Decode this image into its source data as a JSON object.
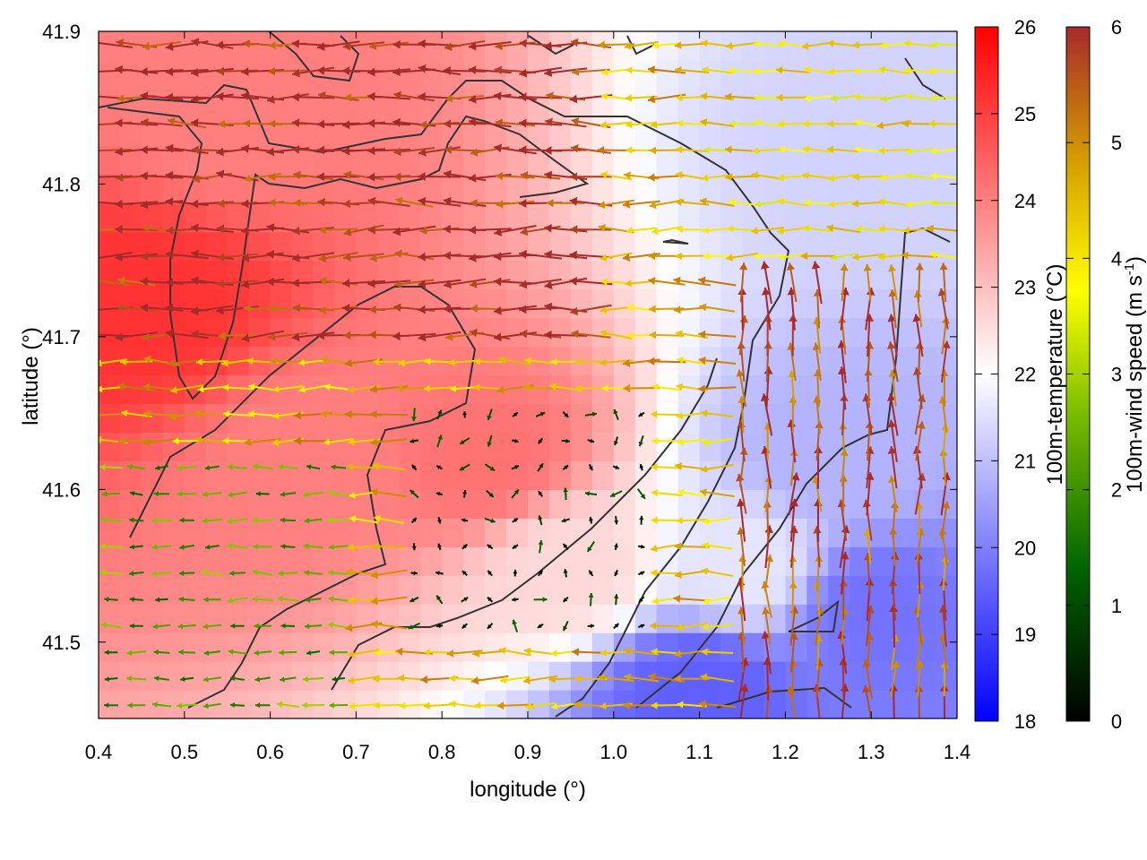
{
  "chart_data": {
    "type": "heatmap",
    "xlabel": "longitude (°)",
    "ylabel": "latitude (°)",
    "xlim": [
      0.4,
      1.4
    ],
    "ylim": [
      41.45,
      41.9
    ],
    "x_ticks": [
      "0.4",
      "0.5",
      "0.6",
      "0.7",
      "0.8",
      "0.9",
      "1.0",
      "1.1",
      "1.2",
      "1.3",
      "1.4"
    ],
    "y_ticks": [
      "41.5",
      "41.6",
      "41.7",
      "41.8",
      "41.9"
    ],
    "grid": false,
    "temperature_field": {
      "label": "100m-temperature (°C)",
      "range": [
        18,
        26
      ],
      "ticks": [
        "18",
        "19",
        "20",
        "21",
        "22",
        "23",
        "24",
        "25",
        "26"
      ],
      "colors": [
        "#0000ff",
        "#ffffff",
        "#ff0000"
      ],
      "sample_values_degC": [
        {
          "x": 0.45,
          "y": 41.72,
          "value": 25.2
        },
        {
          "x": 0.55,
          "y": 41.85,
          "value": 24.0
        },
        {
          "x": 0.65,
          "y": 41.62,
          "value": 24.0
        },
        {
          "x": 0.85,
          "y": 41.62,
          "value": 24.2
        },
        {
          "x": 0.95,
          "y": 41.55,
          "value": 22.6
        },
        {
          "x": 1.15,
          "y": 41.55,
          "value": 21.6
        },
        {
          "x": 1.25,
          "y": 41.62,
          "value": 20.8
        },
        {
          "x": 1.3,
          "y": 41.52,
          "value": 19.8
        },
        {
          "x": 1.32,
          "y": 41.82,
          "value": 21.3
        },
        {
          "x": 1.1,
          "y": 41.47,
          "value": 19.5
        }
      ]
    },
    "wind_field": {
      "label": "100m-wind speed (m s-1)",
      "label_parts": {
        "text": "100m-wind speed (m s",
        "superscript": "-1",
        "close": ")"
      },
      "range": [
        0,
        6
      ],
      "ticks": [
        "0",
        "1",
        "2",
        "3",
        "4",
        "5",
        "6"
      ],
      "colors": [
        "#000000",
        "#006400",
        "#7fbf00",
        "#ffff00",
        "#d7a100",
        "#a52a2a"
      ],
      "regimes": [
        {
          "x": [
            0.4,
            1.0
          ],
          "y": [
            41.7,
            41.9
          ],
          "direction": "west",
          "speed": 6
        },
        {
          "x": [
            0.4,
            0.7
          ],
          "y": [
            41.45,
            41.62
          ],
          "direction": "west",
          "speed": 2
        },
        {
          "x": [
            0.75,
            1.05
          ],
          "y": [
            41.5,
            41.65
          ],
          "direction": "variable",
          "speed": 0.5
        },
        {
          "x": [
            1.15,
            1.4
          ],
          "y": [
            41.45,
            41.75
          ],
          "direction": "north",
          "speed": 5.5
        },
        {
          "x": [
            1.1,
            1.4
          ],
          "y": [
            41.75,
            41.9
          ],
          "direction": "west",
          "speed": 4
        }
      ]
    },
    "coastline": "dark grey contour lines"
  }
}
